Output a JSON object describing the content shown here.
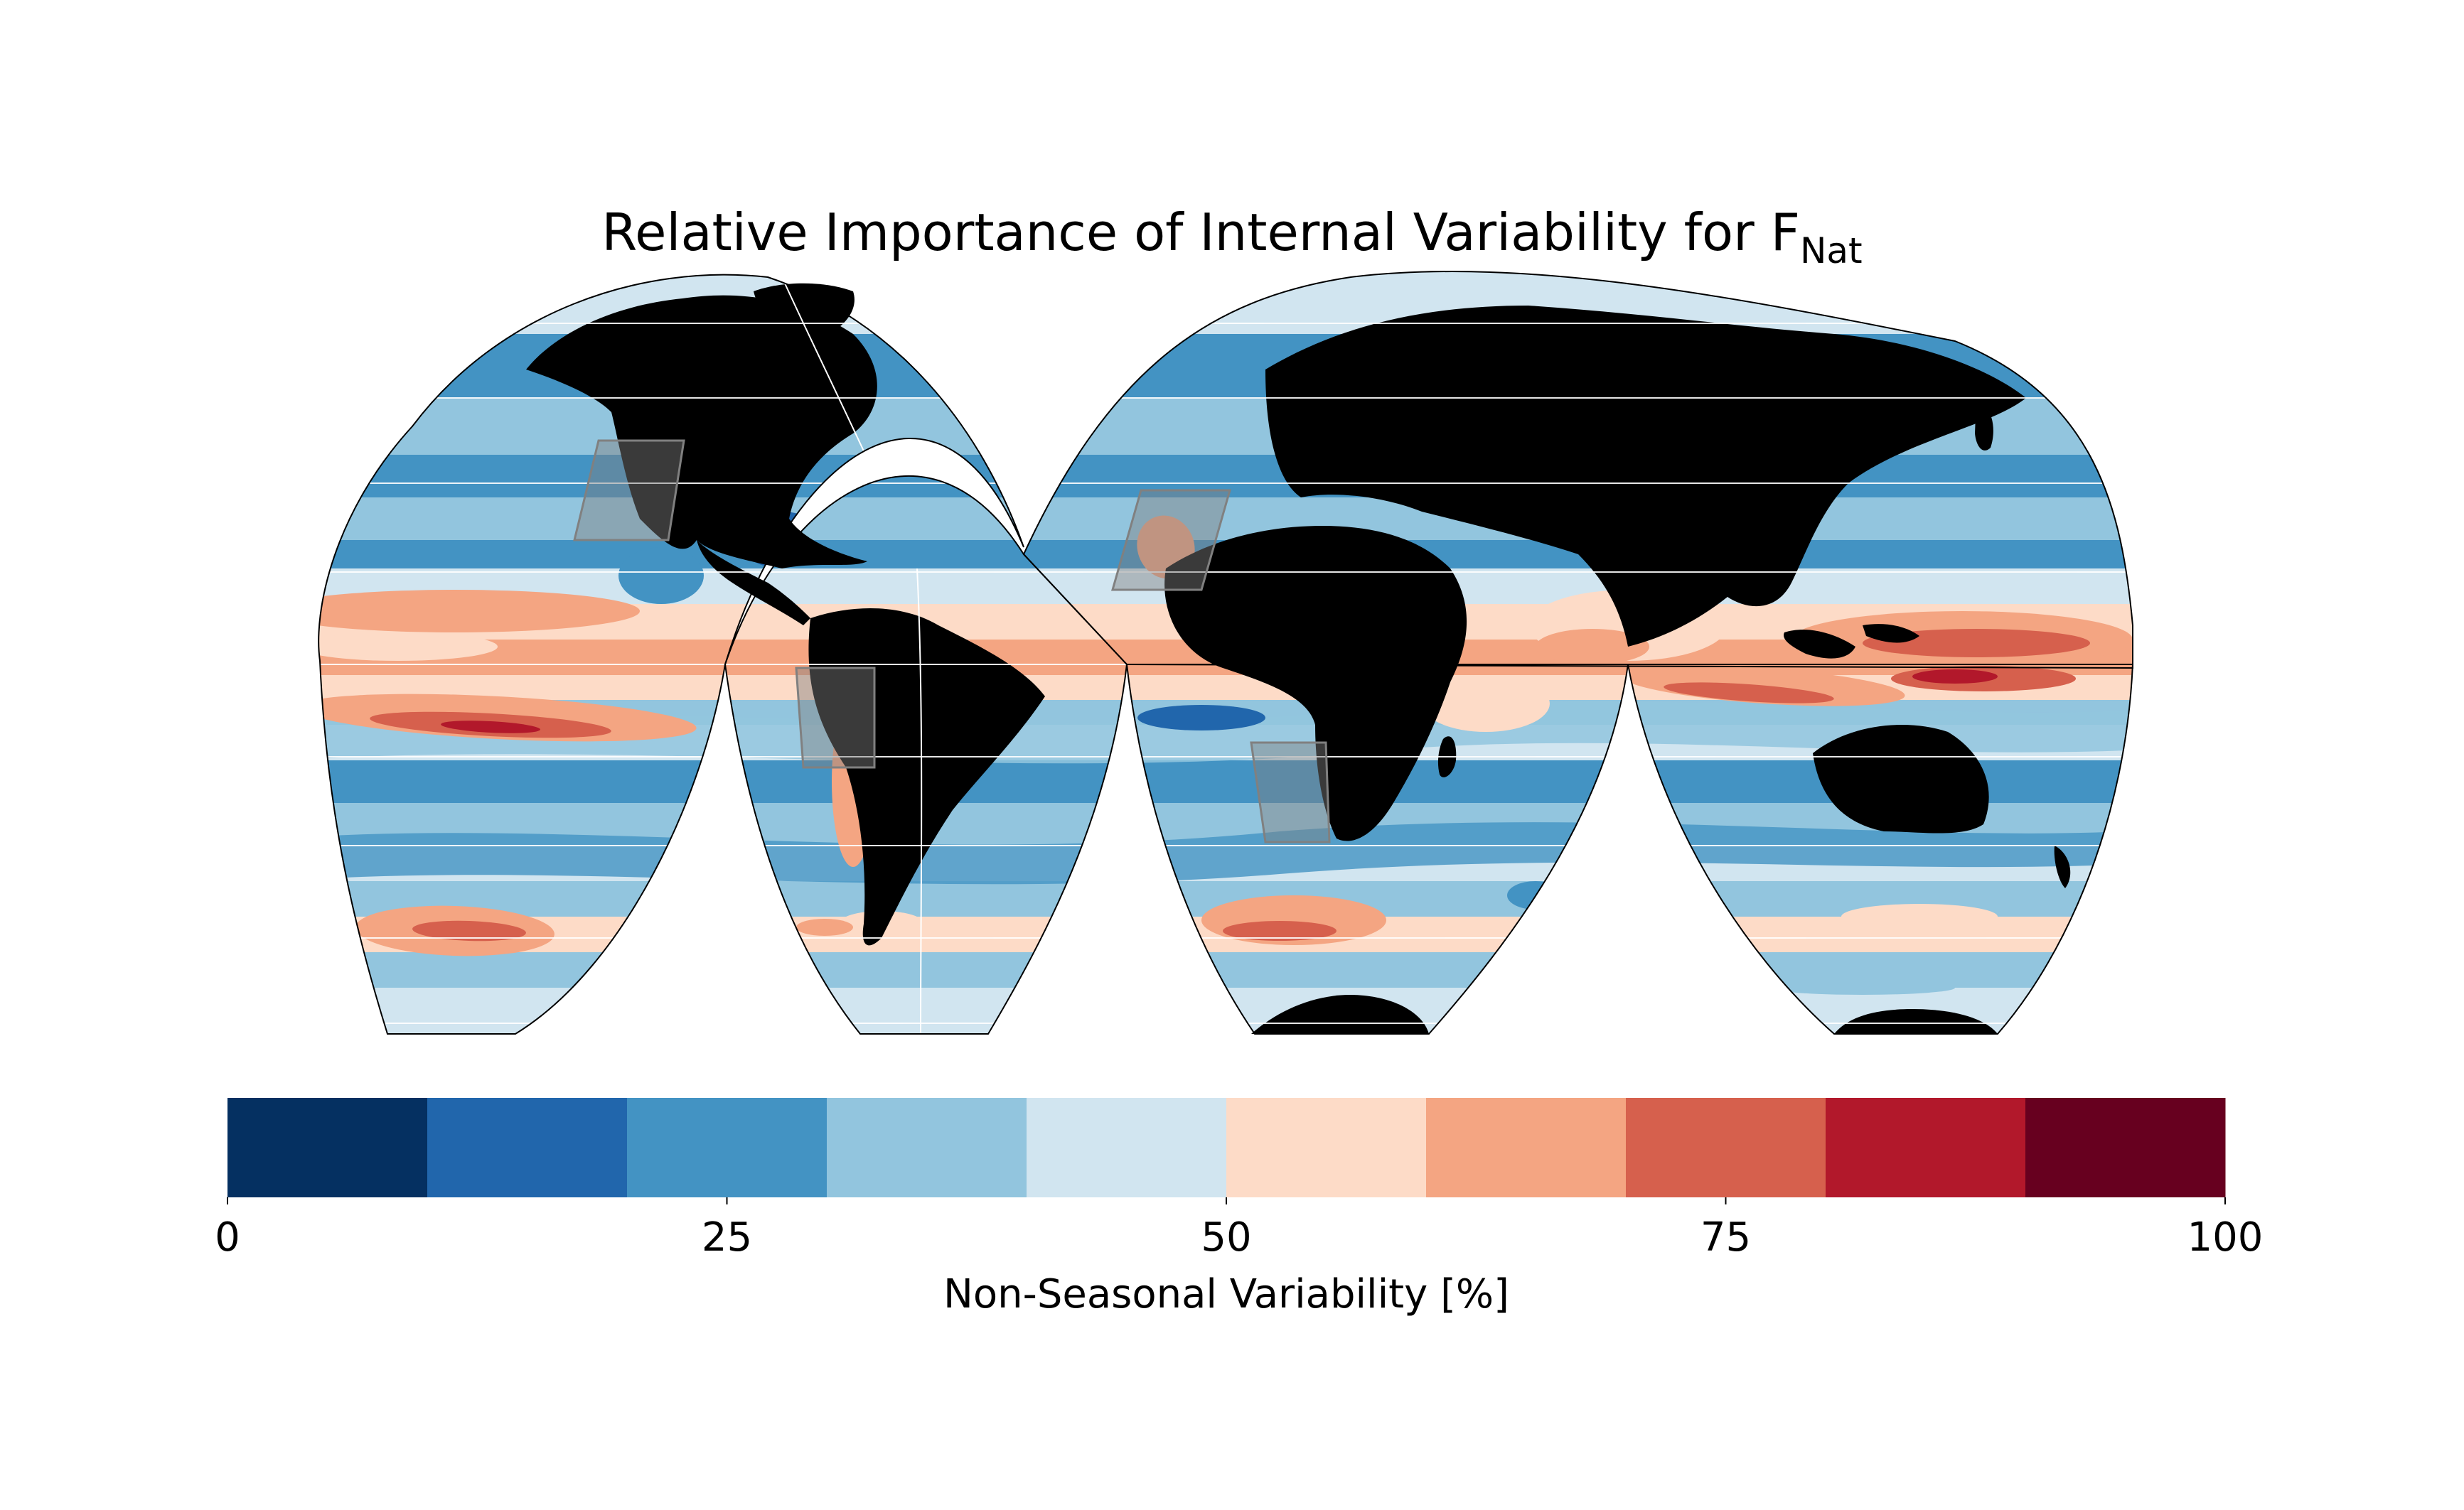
{
  "title": {
    "main": "Relative Importance of Internal Variability for F",
    "subscript": "Nat"
  },
  "map": {
    "projection": "interrupted-goode-homolosine",
    "land_color": "#000000",
    "gridline_color": "#ffffff",
    "region_box_color": "#808080"
  },
  "colorbar": {
    "label": "Non-Seasonal Variability [%]",
    "range": [
      0,
      100
    ],
    "step": 10,
    "tick_values": [
      0,
      25,
      50,
      75,
      100
    ],
    "tick_labels": [
      "0",
      "25",
      "50",
      "75",
      "100"
    ],
    "colors": [
      "#053061",
      "#2166ac",
      "#4393c3",
      "#92c5de",
      "#d1e5f0",
      "#fddbc7",
      "#f4a582",
      "#d6604d",
      "#b2182b",
      "#67001f"
    ],
    "orientation": "horizontal",
    "placement": "bottom"
  }
}
